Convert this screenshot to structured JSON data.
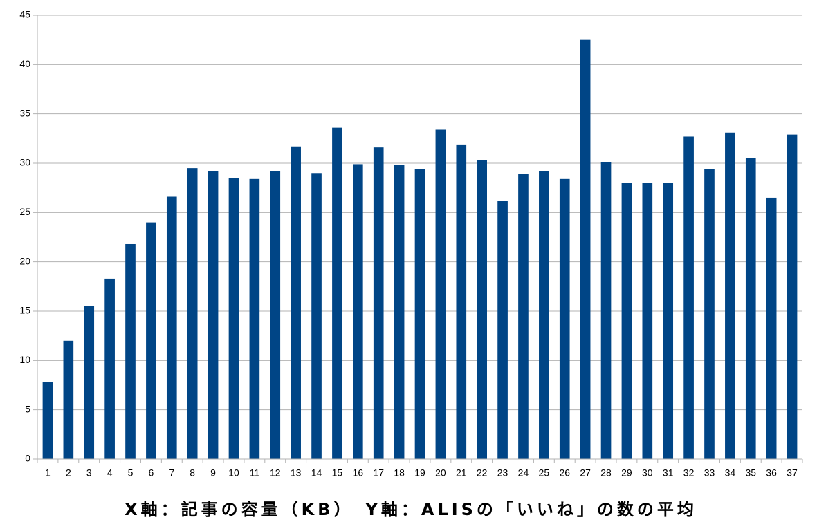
{
  "chart_data": {
    "type": "bar",
    "xlabel": "X軸：記事の容量（KB）　Y軸：ALISの「いいね」の数の平均",
    "categories": [
      "1",
      "2",
      "3",
      "4",
      "5",
      "6",
      "7",
      "8",
      "9",
      "10",
      "11",
      "12",
      "13",
      "14",
      "15",
      "16",
      "17",
      "18",
      "19",
      "20",
      "21",
      "22",
      "23",
      "24",
      "25",
      "26",
      "27",
      "28",
      "29",
      "30",
      "31",
      "32",
      "33",
      "34",
      "35",
      "36",
      "37"
    ],
    "values": [
      7.8,
      12.0,
      15.5,
      18.3,
      21.8,
      24.0,
      26.6,
      29.5,
      29.2,
      28.5,
      28.4,
      29.2,
      31.7,
      29.0,
      33.6,
      29.9,
      31.6,
      29.8,
      29.4,
      33.4,
      31.9,
      30.3,
      26.2,
      28.9,
      29.2,
      28.4,
      42.5,
      30.1,
      28.0,
      28.0,
      28.0,
      32.7,
      29.4,
      33.1,
      30.5,
      26.5,
      32.9
    ],
    "color": "#004586",
    "ylim": [
      0,
      45
    ],
    "yticks": [
      0,
      5,
      10,
      15,
      20,
      25,
      30,
      35,
      40,
      45
    ],
    "grid": true
  }
}
